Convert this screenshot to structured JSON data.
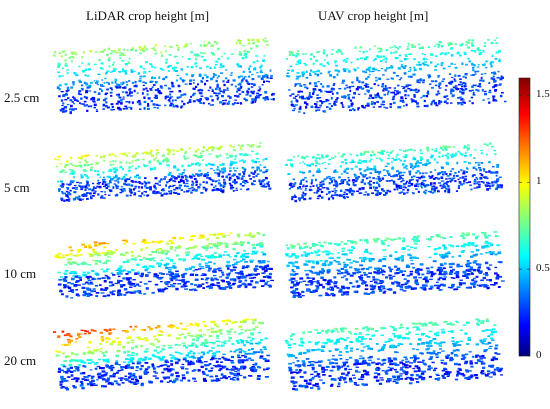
{
  "columns": [
    {
      "title": "LiDAR crop height [m]"
    },
    {
      "title": "UAV crop height [m]"
    }
  ],
  "rows": [
    {
      "label": "2.5 cm"
    },
    {
      "label": "5 cm"
    },
    {
      "label": "10 cm"
    },
    {
      "label": "20 cm"
    }
  ],
  "colorbar": {
    "min": 0,
    "max": 1.6,
    "ticks": [
      {
        "value": 1.5,
        "label": "1.5"
      },
      {
        "value": 1.0,
        "label": "1"
      },
      {
        "value": 0.5,
        "label": "0.5"
      },
      {
        "value": 0,
        "label": "0"
      }
    ],
    "colormap": "jet"
  }
}
